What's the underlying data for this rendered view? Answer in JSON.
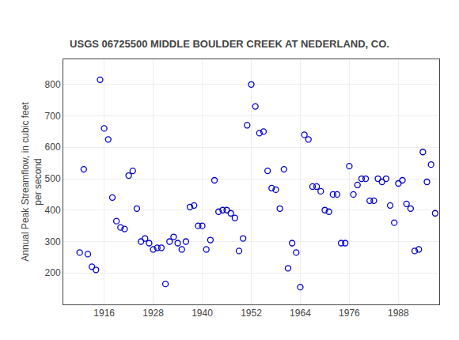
{
  "chart_data": {
    "type": "scatter",
    "title": "USGS 06725500 MIDDLE BOULDER CREEK AT NEDERLAND, CO.",
    "annotations": [
      "USGS"
    ],
    "ylabel": "Annual Peak Streamflow, in cubic feet\nper second",
    "color": "#0000cc",
    "marker": "circle-open",
    "grid": true,
    "xlim": [
      1906,
      1998
    ],
    "ylim": [
      100,
      880
    ],
    "xticks": [
      1916,
      1928,
      1940,
      1952,
      1964,
      1976,
      1988
    ],
    "yticks": [
      200,
      300,
      400,
      500,
      600,
      700,
      800
    ],
    "x": [
      1910,
      1911,
      1912,
      1913,
      1914,
      1915,
      1916,
      1917,
      1918,
      1919,
      1920,
      1921,
      1922,
      1923,
      1924,
      1925,
      1926,
      1927,
      1928,
      1929,
      1930,
      1931,
      1932,
      1933,
      1934,
      1935,
      1936,
      1937,
      1938,
      1939,
      1940,
      1941,
      1942,
      1943,
      1944,
      1945,
      1946,
      1947,
      1948,
      1949,
      1950,
      1951,
      1952,
      1953,
      1954,
      1955,
      1956,
      1957,
      1958,
      1959,
      1960,
      1961,
      1962,
      1963,
      1964,
      1965,
      1966,
      1967,
      1968,
      1969,
      1970,
      1971,
      1972,
      1973,
      1974,
      1975,
      1976,
      1977,
      1978,
      1979,
      1980,
      1981,
      1982,
      1983,
      1984,
      1985,
      1986,
      1987,
      1988,
      1989,
      1990,
      1991,
      1992,
      1993,
      1994,
      1995,
      1996,
      1997
    ],
    "values": [
      265,
      530,
      260,
      220,
      210,
      815,
      660,
      625,
      440,
      365,
      345,
      340,
      510,
      525,
      405,
      300,
      310,
      295,
      275,
      280,
      280,
      165,
      300,
      315,
      295,
      275,
      300,
      410,
      415,
      350,
      350,
      275,
      305,
      495,
      395,
      400,
      400,
      390,
      375,
      270,
      310,
      670,
      800,
      730,
      645,
      650,
      525,
      470,
      465,
      405,
      530,
      215,
      295,
      265,
      155,
      640,
      625,
      475,
      475,
      460,
      400,
      395,
      450,
      450,
      295,
      295,
      540,
      450,
      480,
      500,
      500,
      430,
      430,
      500,
      490,
      500,
      415,
      360,
      485,
      495,
      420,
      405,
      270,
      275,
      585,
      490,
      545,
      390
    ]
  }
}
